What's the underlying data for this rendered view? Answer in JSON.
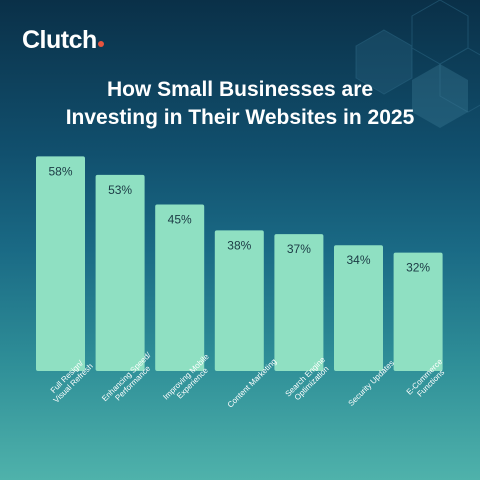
{
  "brand": {
    "logo_text": "Clutch",
    "accent_dot_color": "#e8543e"
  },
  "header": {
    "title_line1": "How Small Businesses are",
    "title_line2": "Investing in Their Websites in 2025"
  },
  "colors": {
    "background_top": "#0a3048",
    "background_bottom": "#4fb2ab",
    "bar": "#8fe0c2",
    "value_text": "#1b3a44"
  },
  "chart_data": {
    "type": "bar",
    "title": "How Small Businesses are Investing in Their Websites in 2025",
    "xlabel": "",
    "ylabel": "",
    "unit": "%",
    "ylim": [
      0,
      60
    ],
    "grid": false,
    "legend": "none",
    "categories": [
      [
        "Full Resign/",
        "Visual Refresh"
      ],
      [
        "Enhancing Speed/",
        "Performance"
      ],
      [
        "Improving Mobile",
        "Experience"
      ],
      [
        "Content Marketing"
      ],
      [
        "Search Engine",
        "Optimization"
      ],
      [
        "Security Updates"
      ],
      [
        "E-Commerce",
        "Functions"
      ]
    ],
    "values": [
      58,
      53,
      45,
      38,
      37,
      34,
      32
    ],
    "value_labels": [
      "58%",
      "53%",
      "45%",
      "38%",
      "37%",
      "34%",
      "32%"
    ]
  }
}
